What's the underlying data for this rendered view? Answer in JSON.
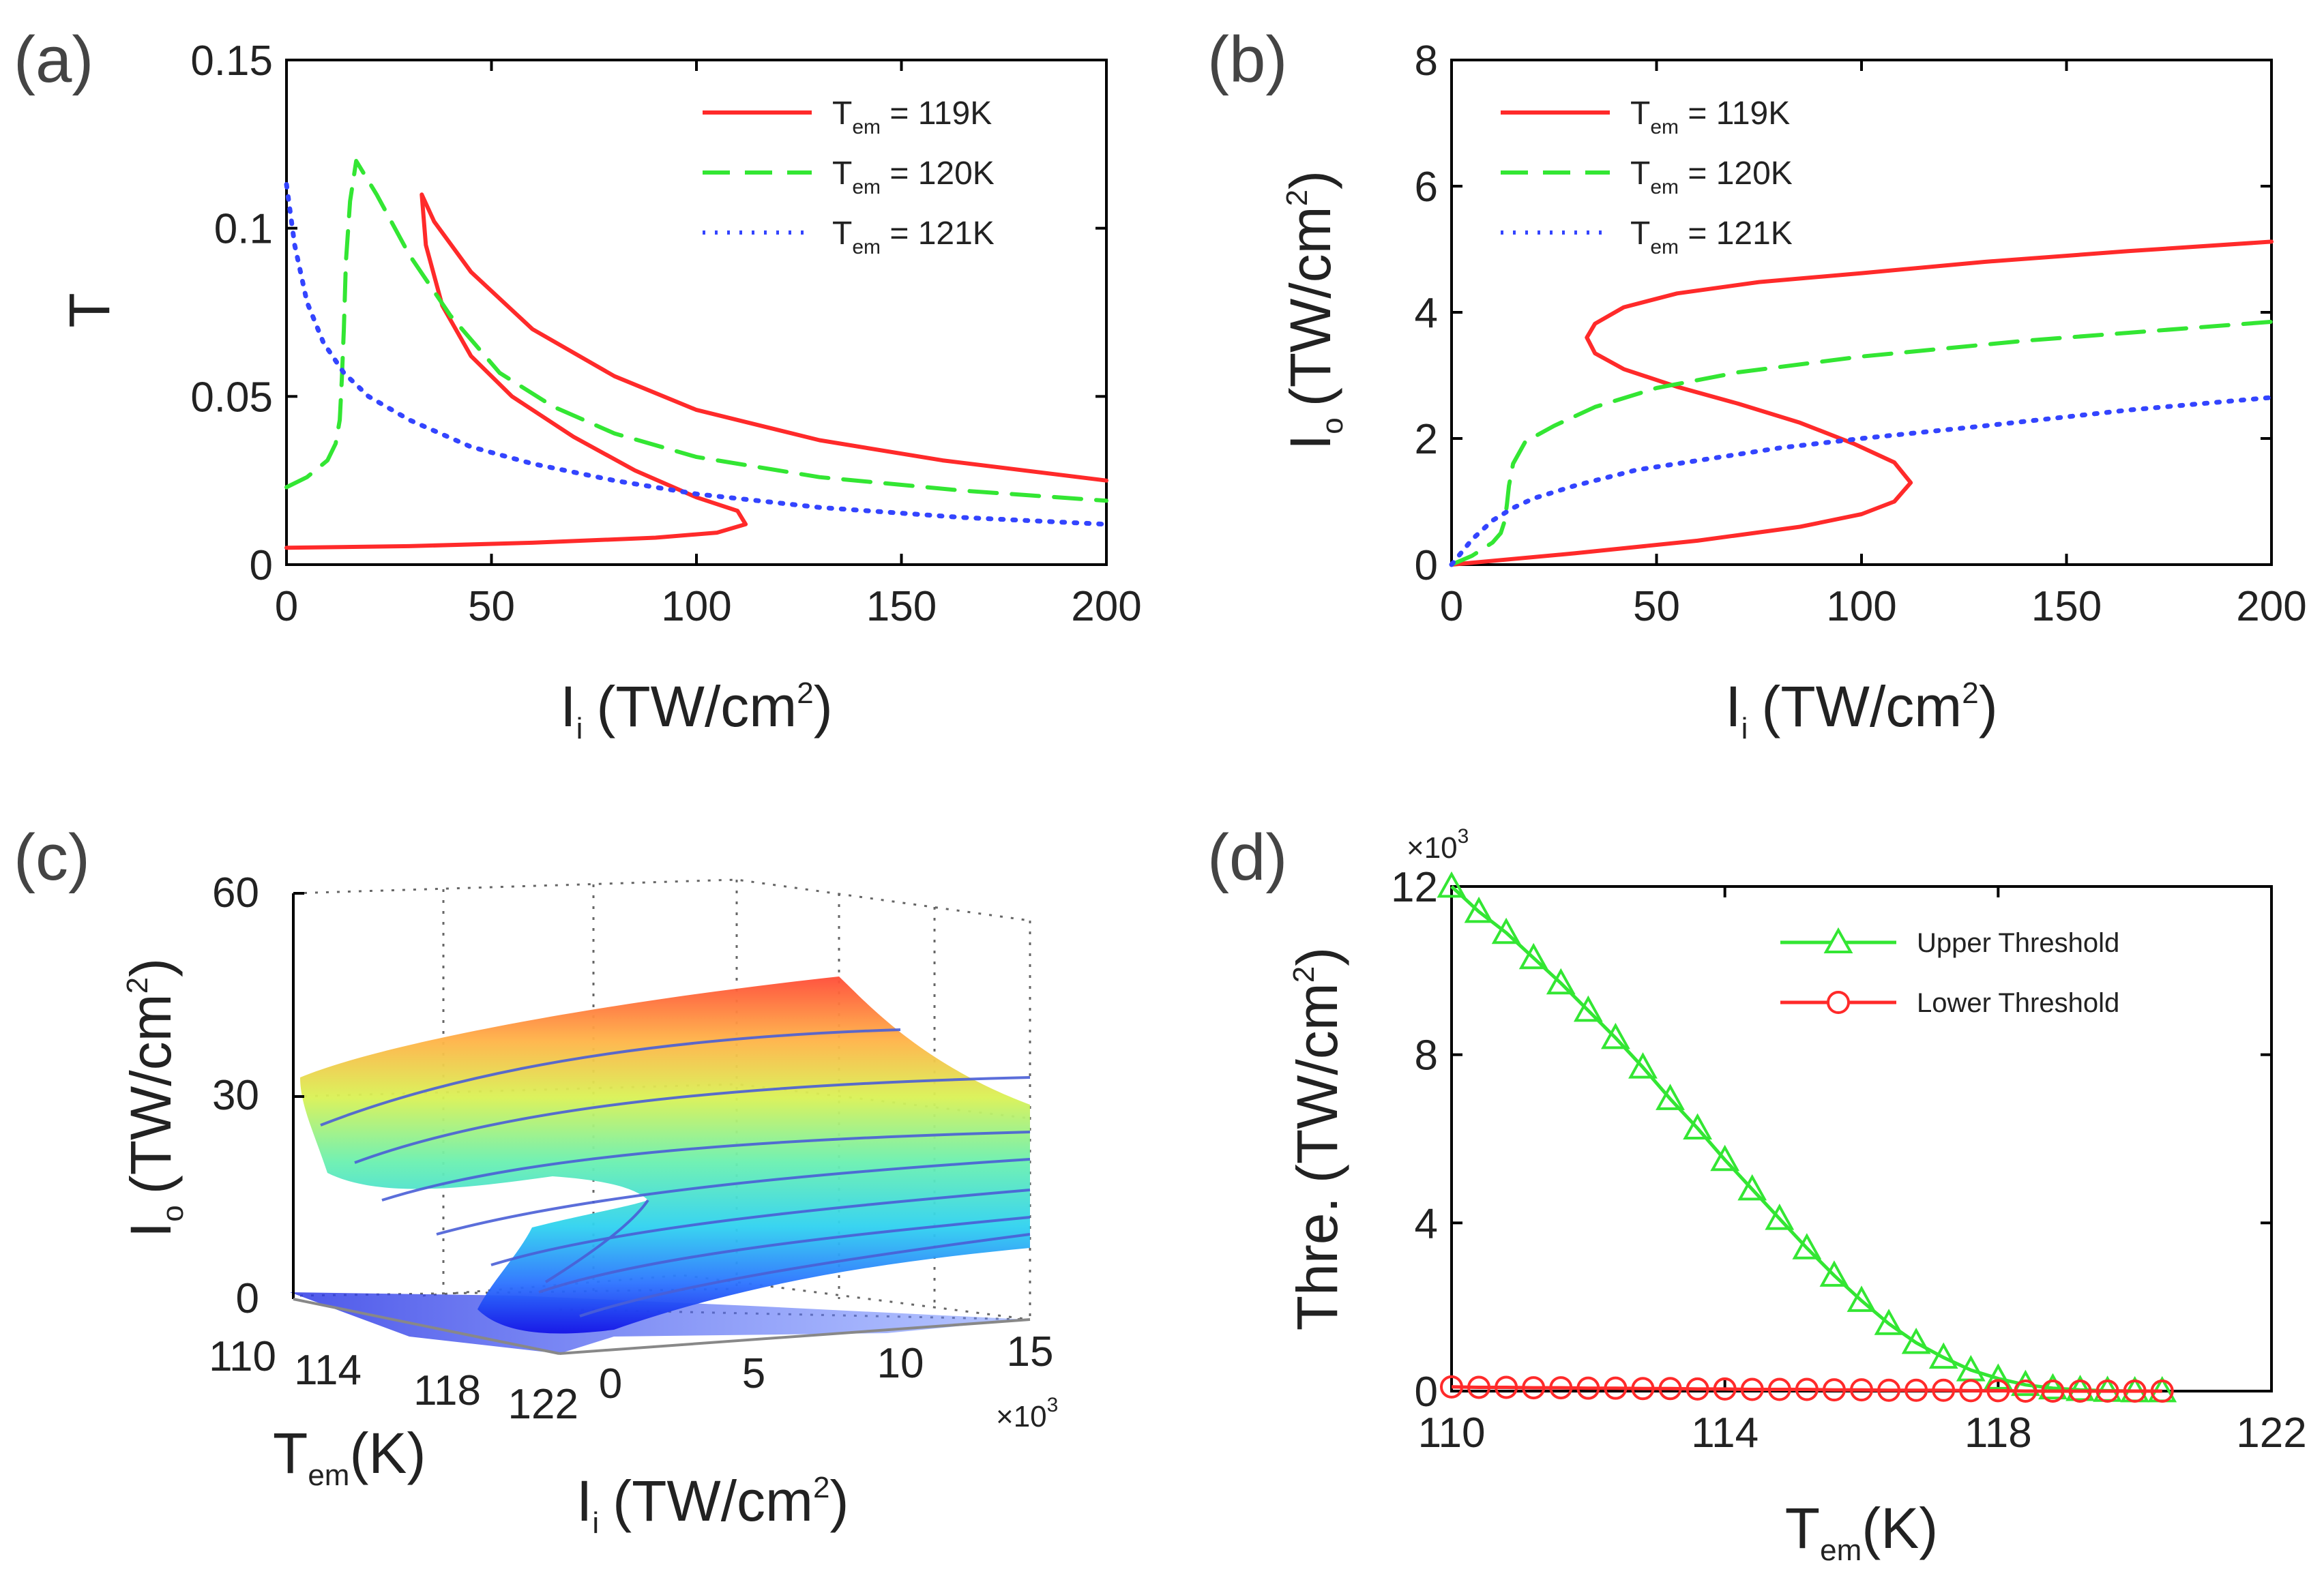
{
  "chart_data": [
    {
      "panel": "(a)",
      "type": "line",
      "xlabel": {
        "main": "I",
        "sub": "i",
        "unit": "(TW/cm",
        "sup": "2",
        "close": ")"
      },
      "ylabel": "T",
      "xlim": [
        0,
        200
      ],
      "ylim": [
        0,
        0.15
      ],
      "xticks": [
        "0",
        "50",
        "100",
        "150",
        "200"
      ],
      "yticks": [
        "0",
        "0.05",
        "0.1",
        "0.15"
      ],
      "series": [
        {
          "name": "T_em = 119K",
          "legend": {
            "main": "T",
            "sub": "em",
            "rest": " = 119K"
          },
          "color": "#ff2a2a",
          "dash": "solid",
          "x": [
            0,
            30,
            60,
            90,
            105,
            112,
            110,
            100,
            85,
            70,
            55,
            45,
            38,
            34,
            33,
            36,
            45,
            60,
            80,
            100,
            130,
            160,
            200
          ],
          "y": [
            0.005,
            0.0055,
            0.0065,
            0.008,
            0.0095,
            0.012,
            0.016,
            0.02,
            0.028,
            0.038,
            0.05,
            0.062,
            0.077,
            0.095,
            0.11,
            0.102,
            0.087,
            0.07,
            0.056,
            0.046,
            0.037,
            0.031,
            0.025
          ]
        },
        {
          "name": "T_em = 120K",
          "legend": {
            "main": "T",
            "sub": "em",
            "rest": " = 120K"
          },
          "color": "#33e633",
          "dash": "dashed",
          "x": [
            0,
            5,
            10,
            12,
            13,
            13.5,
            14,
            14.5,
            15.5,
            17,
            22,
            30,
            40,
            52,
            65,
            80,
            100,
            130,
            165,
            200
          ],
          "y": [
            0.023,
            0.026,
            0.031,
            0.036,
            0.043,
            0.055,
            0.07,
            0.09,
            0.108,
            0.12,
            0.11,
            0.092,
            0.074,
            0.057,
            0.047,
            0.039,
            0.032,
            0.026,
            0.022,
            0.019
          ]
        },
        {
          "name": "T_em = 121K",
          "legend": {
            "main": "T",
            "sub": "em",
            "rest": " = 121K"
          },
          "color": "#3344ff",
          "dash": "dotted",
          "x": [
            0,
            2,
            5,
            9,
            14,
            20,
            30,
            45,
            60,
            80,
            100,
            130,
            165,
            200
          ],
          "y": [
            0.113,
            0.095,
            0.078,
            0.066,
            0.057,
            0.05,
            0.043,
            0.035,
            0.03,
            0.025,
            0.021,
            0.017,
            0.014,
            0.012
          ]
        }
      ]
    },
    {
      "panel": "(b)",
      "type": "line",
      "xlabel": {
        "main": "I",
        "sub": "i",
        "unit": "(TW/cm",
        "sup": "2",
        "close": ")"
      },
      "ylabel": {
        "main": "I",
        "sub": "o",
        "unit": "(TW/cm",
        "sup": "2",
        "close": ")"
      },
      "xlim": [
        0,
        200
      ],
      "ylim": [
        0,
        8
      ],
      "xticks": [
        "0",
        "50",
        "100",
        "150",
        "200"
      ],
      "yticks": [
        "0",
        "2",
        "4",
        "6",
        "8"
      ],
      "series": [
        {
          "name": "T_em = 119K",
          "legend": {
            "main": "T",
            "sub": "em",
            "rest": " = 119K"
          },
          "color": "#ff2a2a",
          "dash": "solid",
          "x": [
            0,
            30,
            60,
            85,
            100,
            108,
            112,
            108,
            98,
            85,
            70,
            55,
            42,
            35,
            33,
            35,
            42,
            55,
            75,
            100,
            130,
            165,
            200
          ],
          "y": [
            0.0,
            0.18,
            0.38,
            0.6,
            0.8,
            1.0,
            1.3,
            1.62,
            1.92,
            2.25,
            2.55,
            2.82,
            3.1,
            3.35,
            3.6,
            3.82,
            4.08,
            4.3,
            4.48,
            4.62,
            4.8,
            4.97,
            5.12
          ]
        },
        {
          "name": "T_em = 120K",
          "legend": {
            "main": "T",
            "sub": "em",
            "rest": " = 120K"
          },
          "color": "#33e633",
          "dash": "dashed",
          "x": [
            0,
            5,
            10,
            12,
            13,
            13.5,
            14,
            15,
            18,
            25,
            35,
            50,
            70,
            100,
            140,
            200
          ],
          "y": [
            0,
            0.14,
            0.35,
            0.5,
            0.7,
            0.95,
            1.25,
            1.6,
            1.95,
            2.2,
            2.5,
            2.8,
            3.05,
            3.3,
            3.55,
            3.85
          ]
        },
        {
          "name": "T_em = 121K",
          "legend": {
            "main": "T",
            "sub": "em",
            "rest": " = 121K"
          },
          "color": "#3344ff",
          "dash": "dotted",
          "x": [
            0,
            5,
            10,
            15,
            20,
            30,
            45,
            60,
            80,
            100,
            130,
            165,
            200
          ],
          "y": [
            0,
            0.4,
            0.7,
            0.9,
            1.05,
            1.25,
            1.5,
            1.65,
            1.85,
            2.0,
            2.2,
            2.45,
            2.65
          ]
        }
      ]
    },
    {
      "panel": "(c)",
      "type": "surface",
      "zlabel": {
        "main": "I",
        "sub": "o",
        "unit": "(TW/cm",
        "sup": "2",
        "close": ")"
      },
      "ylabel": {
        "main": "T",
        "sub": "em",
        "unit": "(K)"
      },
      "xlabel": {
        "main": "I",
        "sub": "i",
        "unit": "(TW/cm",
        "sup": "2",
        "close": ")"
      },
      "zlim": [
        0,
        60
      ],
      "zticks": [
        "0",
        "30",
        "60"
      ],
      "yticks": [
        "110",
        "114",
        "118",
        "122"
      ],
      "xticks": [
        "0",
        "5",
        "10",
        "15"
      ],
      "x_multiplier": {
        "base": "×10",
        "exp": "3"
      },
      "contour_levels": [
        5,
        10,
        15,
        20,
        25,
        30,
        35,
        40
      ]
    },
    {
      "panel": "(d)",
      "type": "line",
      "xlabel": {
        "main": "T",
        "sub": "em",
        "unit": "(K)"
      },
      "ylabel": {
        "main": "Thre.",
        "unit": "(TW/cm",
        "sup": "2",
        "close": ")"
      },
      "xlim": [
        110,
        122
      ],
      "ylim": [
        0,
        12
      ],
      "y_multiplier": {
        "base": "×10",
        "exp": "3"
      },
      "xticks": [
        "110",
        "114",
        "118",
        "122"
      ],
      "yticks": [
        "0",
        "4",
        "8",
        "12"
      ],
      "series": [
        {
          "name": "Upper Threshold",
          "color": "#33e633",
          "marker": "triangle",
          "x": [
            110,
            110.4,
            110.8,
            111.2,
            111.6,
            112,
            112.4,
            112.8,
            113.2,
            113.6,
            114,
            114.4,
            114.8,
            115.2,
            115.6,
            116,
            116.4,
            116.8,
            117.2,
            117.6,
            118,
            118.4,
            118.8,
            119.2,
            119.6,
            120,
            120.4
          ],
          "y": [
            12.0,
            11.4,
            10.9,
            10.3,
            9.7,
            9.05,
            8.4,
            7.7,
            6.95,
            6.25,
            5.5,
            4.8,
            4.1,
            3.4,
            2.75,
            2.15,
            1.6,
            1.15,
            0.8,
            0.5,
            0.3,
            0.15,
            0.07,
            0.03,
            0.01,
            0.0,
            0.0
          ]
        },
        {
          "name": "Lower Threshold",
          "color": "#ff2a2a",
          "marker": "circle",
          "x": [
            110,
            110.4,
            110.8,
            111.2,
            111.6,
            112,
            112.4,
            112.8,
            113.2,
            113.6,
            114,
            114.4,
            114.8,
            115.2,
            115.6,
            116,
            116.4,
            116.8,
            117.2,
            117.6,
            118,
            118.4,
            118.8,
            119.2,
            119.6,
            120,
            120.4
          ],
          "y": [
            0.1,
            0.09,
            0.09,
            0.08,
            0.08,
            0.07,
            0.07,
            0.06,
            0.06,
            0.05,
            0.05,
            0.04,
            0.04,
            0.04,
            0.03,
            0.03,
            0.02,
            0.02,
            0.02,
            0.01,
            0.01,
            0.0,
            0.0,
            0.0,
            0.0,
            0.0,
            0.0
          ]
        }
      ]
    }
  ]
}
